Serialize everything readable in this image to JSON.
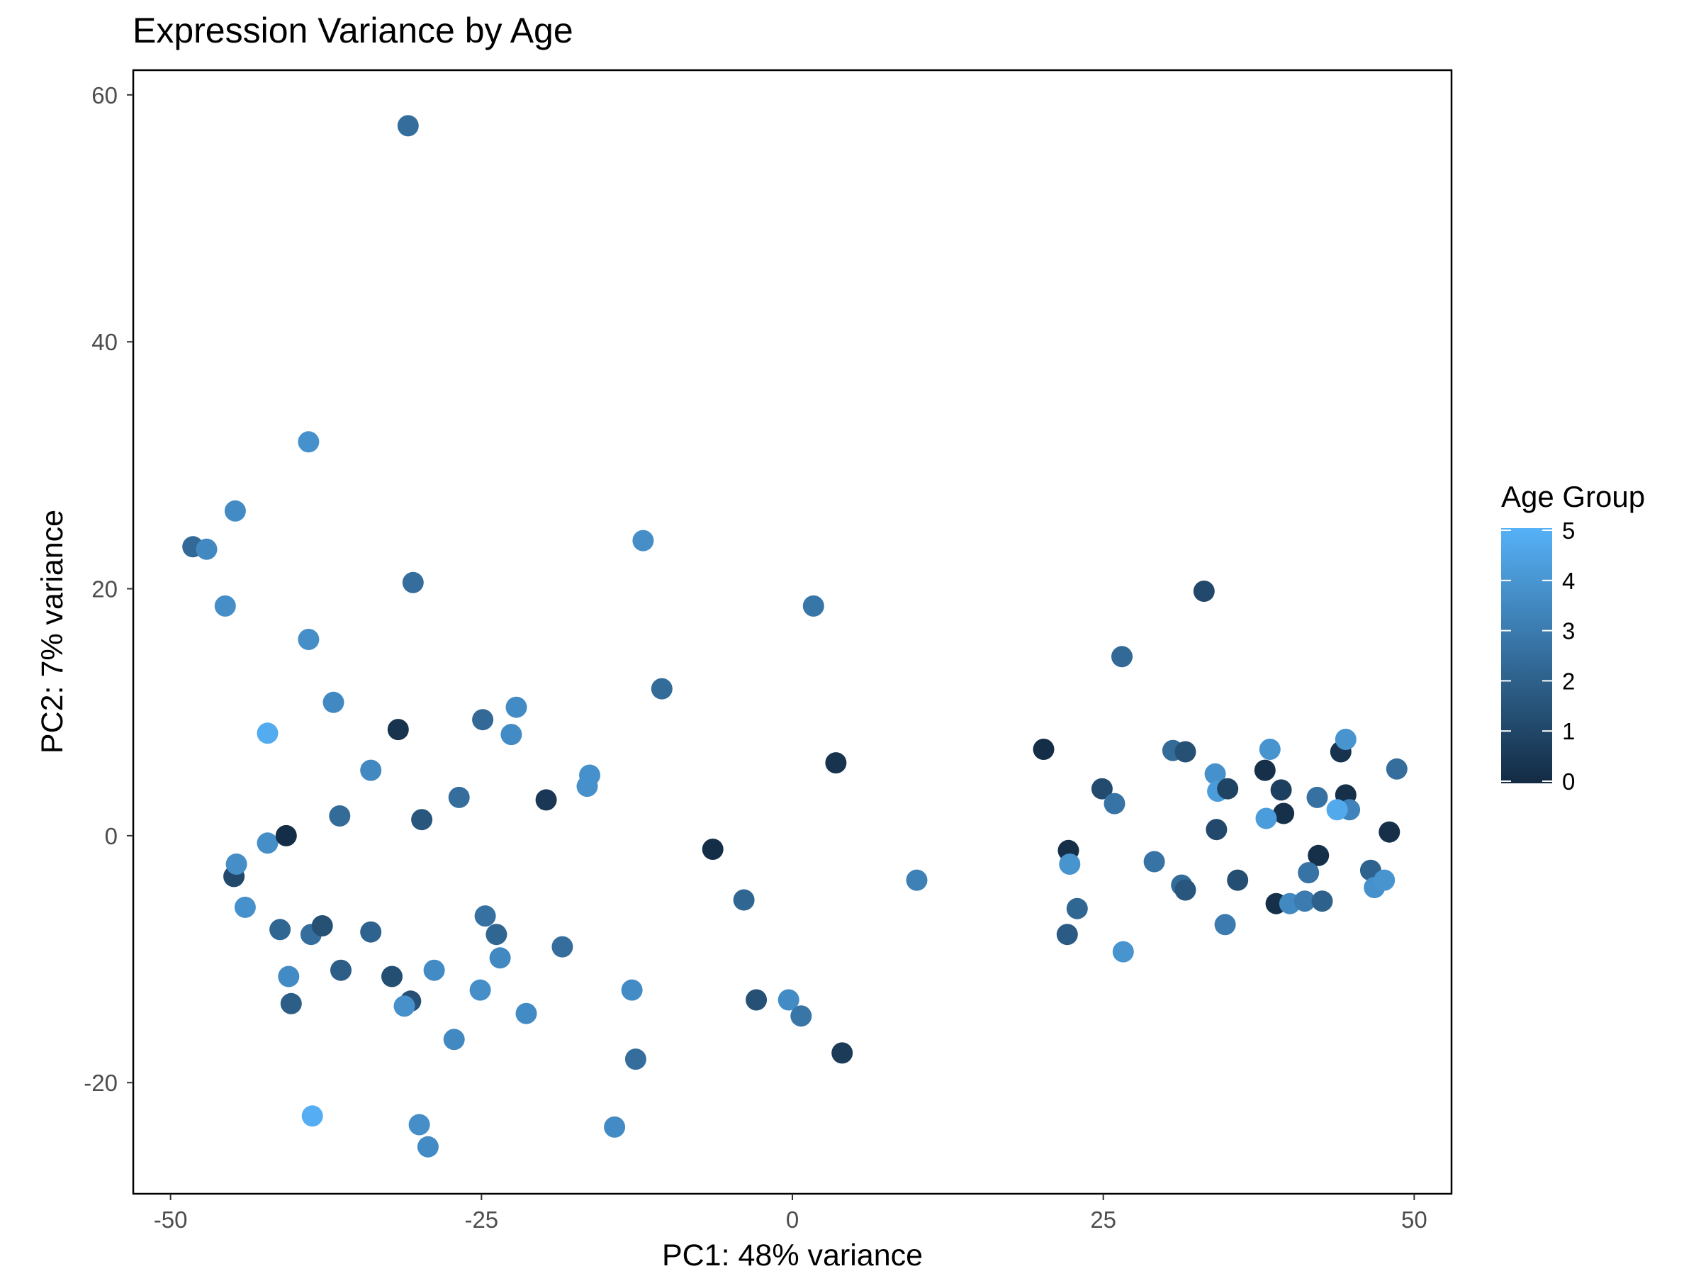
{
  "chart_data": {
    "type": "scatter",
    "title": "Expression Variance by Age",
    "xlabel": "PC1: 48% variance",
    "ylabel": "PC2: 7% variance",
    "xlim": [
      -53,
      53
    ],
    "ylim": [
      -29,
      62
    ],
    "x_ticks": [
      -50,
      -25,
      0,
      25,
      50
    ],
    "x_tick_labels": [
      "-50",
      "-25",
      "0",
      "25",
      "50"
    ],
    "y_ticks": [
      -20,
      0,
      20,
      40,
      60
    ],
    "y_tick_labels": [
      "-20",
      "0",
      "20",
      "40",
      "60"
    ],
    "grid": false,
    "legend": {
      "title": "Age Group",
      "position": "right",
      "min": 0,
      "max": 5,
      "ticks": [
        "0",
        "1",
        "2",
        "3",
        "4",
        "5"
      ],
      "color_low": "#132b43",
      "color_high": "#56b1f7"
    },
    "points": [
      {
        "x": -30.9,
        "y": 57.5,
        "age": 2.5
      },
      {
        "x": -38.9,
        "y": 31.9,
        "age": 3.8
      },
      {
        "x": -44.8,
        "y": 26.3,
        "age": 3.6
      },
      {
        "x": -48.2,
        "y": 23.4,
        "age": 2.3
      },
      {
        "x": -47.1,
        "y": 23.2,
        "age": 3.5
      },
      {
        "x": -45.6,
        "y": 18.6,
        "age": 3.7
      },
      {
        "x": -30.5,
        "y": 20.5,
        "age": 2.5
      },
      {
        "x": -38.9,
        "y": 15.9,
        "age": 3.7
      },
      {
        "x": -36.9,
        "y": 10.8,
        "age": 3.5
      },
      {
        "x": -42.2,
        "y": 8.3,
        "age": 4.8
      },
      {
        "x": -31.7,
        "y": 8.6,
        "age": 0.3
      },
      {
        "x": -24.9,
        "y": 9.4,
        "age": 2.3
      },
      {
        "x": -22.2,
        "y": 10.4,
        "age": 3.6
      },
      {
        "x": -22.6,
        "y": 8.2,
        "age": 3.6
      },
      {
        "x": -33.9,
        "y": 5.3,
        "age": 3.5
      },
      {
        "x": -36.4,
        "y": 1.6,
        "age": 2.4
      },
      {
        "x": -29.8,
        "y": 1.3,
        "age": 1.6
      },
      {
        "x": -26.8,
        "y": 3.1,
        "age": 2.5
      },
      {
        "x": -19.8,
        "y": 2.9,
        "age": 0.5
      },
      {
        "x": -16.3,
        "y": 4.9,
        "age": 3.8
      },
      {
        "x": -16.5,
        "y": 4.0,
        "age": 3.8
      },
      {
        "x": -12.0,
        "y": 23.9,
        "age": 3.7
      },
      {
        "x": -10.5,
        "y": 11.9,
        "age": 2.4
      },
      {
        "x": 1.7,
        "y": 18.6,
        "age": 2.8
      },
      {
        "x": 3.5,
        "y": 5.9,
        "age": 0.3
      },
      {
        "x": -42.2,
        "y": -0.6,
        "age": 3.7
      },
      {
        "x": -40.7,
        "y": 0.0,
        "age": 0.1
      },
      {
        "x": -44.9,
        "y": -3.3,
        "age": 1.1
      },
      {
        "x": -44.7,
        "y": -2.3,
        "age": 3.7
      },
      {
        "x": -44.0,
        "y": -5.8,
        "age": 3.8
      },
      {
        "x": -41.2,
        "y": -7.6,
        "age": 2.2
      },
      {
        "x": -38.7,
        "y": -8.0,
        "age": 2.5
      },
      {
        "x": -37.8,
        "y": -7.3,
        "age": 1.4
      },
      {
        "x": -33.9,
        "y": -7.8,
        "age": 2.1
      },
      {
        "x": -40.5,
        "y": -11.4,
        "age": 3.6
      },
      {
        "x": -40.3,
        "y": -13.6,
        "age": 1.9
      },
      {
        "x": -36.3,
        "y": -10.9,
        "age": 1.9
      },
      {
        "x": -32.2,
        "y": -11.4,
        "age": 1.3
      },
      {
        "x": -30.7,
        "y": -13.4,
        "age": 1.4
      },
      {
        "x": -31.2,
        "y": -13.8,
        "age": 3.8
      },
      {
        "x": -28.8,
        "y": -10.9,
        "age": 3.6
      },
      {
        "x": -24.7,
        "y": -6.5,
        "age": 2.6
      },
      {
        "x": -23.8,
        "y": -8.0,
        "age": 2.2
      },
      {
        "x": -23.5,
        "y": -9.9,
        "age": 3.5
      },
      {
        "x": -25.1,
        "y": -12.5,
        "age": 3.7
      },
      {
        "x": -21.4,
        "y": -14.4,
        "age": 3.6
      },
      {
        "x": -18.5,
        "y": -9.0,
        "age": 2.5
      },
      {
        "x": -27.2,
        "y": -16.5,
        "age": 3.5
      },
      {
        "x": -12.9,
        "y": -12.5,
        "age": 3.6
      },
      {
        "x": -12.6,
        "y": -18.1,
        "age": 2.5
      },
      {
        "x": -6.4,
        "y": -1.1,
        "age": 0.1
      },
      {
        "x": -3.9,
        "y": -5.2,
        "age": 2.2
      },
      {
        "x": -2.9,
        "y": -13.3,
        "age": 1.4
      },
      {
        "x": -0.3,
        "y": -13.3,
        "age": 3.6
      },
      {
        "x": 0.7,
        "y": -14.6,
        "age": 2.8
      },
      {
        "x": 4.0,
        "y": -17.6,
        "age": 0.6
      },
      {
        "x": 10.0,
        "y": -3.6,
        "age": 3.2
      },
      {
        "x": -38.6,
        "y": -22.7,
        "age": 4.9
      },
      {
        "x": -30.0,
        "y": -23.4,
        "age": 3.7
      },
      {
        "x": -29.3,
        "y": -25.2,
        "age": 3.6
      },
      {
        "x": -14.3,
        "y": -23.6,
        "age": 3.6
      },
      {
        "x": 20.2,
        "y": 7.0,
        "age": 0.1
      },
      {
        "x": 22.2,
        "y": -1.2,
        "age": 0.2
      },
      {
        "x": 22.3,
        "y": -2.3,
        "age": 3.9
      },
      {
        "x": 22.9,
        "y": -5.9,
        "age": 2.2
      },
      {
        "x": 22.1,
        "y": -8.0,
        "age": 1.8
      },
      {
        "x": 24.9,
        "y": 3.8,
        "age": 1.2
      },
      {
        "x": 25.9,
        "y": 2.6,
        "age": 2.7
      },
      {
        "x": 26.5,
        "y": 14.5,
        "age": 2.3
      },
      {
        "x": 26.6,
        "y": -9.4,
        "age": 3.9
      },
      {
        "x": 29.1,
        "y": -2.1,
        "age": 2.7
      },
      {
        "x": 30.6,
        "y": 6.9,
        "age": 2.4
      },
      {
        "x": 31.6,
        "y": 6.8,
        "age": 1.4
      },
      {
        "x": 31.3,
        "y": -4.0,
        "age": 2.4
      },
      {
        "x": 31.6,
        "y": -4.4,
        "age": 1.6
      },
      {
        "x": 33.1,
        "y": 19.8,
        "age": 1.1
      },
      {
        "x": 34.0,
        "y": 5.0,
        "age": 3.8
      },
      {
        "x": 34.2,
        "y": 3.6,
        "age": 4.2
      },
      {
        "x": 35.0,
        "y": 3.8,
        "age": 0.9
      },
      {
        "x": 34.1,
        "y": 0.5,
        "age": 1.1
      },
      {
        "x": 34.8,
        "y": -7.2,
        "age": 3.0
      },
      {
        "x": 35.8,
        "y": -3.6,
        "age": 1.3
      },
      {
        "x": 38.0,
        "y": 5.3,
        "age": 0.2
      },
      {
        "x": 38.4,
        "y": 7.0,
        "age": 3.9
      },
      {
        "x": 39.3,
        "y": 3.7,
        "age": 0.8
      },
      {
        "x": 39.5,
        "y": 1.8,
        "age": 0.2
      },
      {
        "x": 38.1,
        "y": 1.4,
        "age": 4.2
      },
      {
        "x": 38.9,
        "y": -5.5,
        "age": 0.2
      },
      {
        "x": 40.0,
        "y": -5.5,
        "age": 3.5
      },
      {
        "x": 41.2,
        "y": -5.3,
        "age": 3.0
      },
      {
        "x": 42.2,
        "y": 3.1,
        "age": 2.6
      },
      {
        "x": 42.3,
        "y": -1.6,
        "age": 0.2
      },
      {
        "x": 41.5,
        "y": -3.0,
        "age": 2.7
      },
      {
        "x": 42.6,
        "y": -5.3,
        "age": 2.0
      },
      {
        "x": 44.1,
        "y": 6.8,
        "age": 0.3
      },
      {
        "x": 44.5,
        "y": 3.3,
        "age": 0.2
      },
      {
        "x": 44.5,
        "y": 7.8,
        "age": 3.9
      },
      {
        "x": 44.8,
        "y": 2.1,
        "age": 3.3
      },
      {
        "x": 43.8,
        "y": 2.1,
        "age": 4.7
      },
      {
        "x": 46.5,
        "y": -2.8,
        "age": 2.1
      },
      {
        "x": 46.8,
        "y": -4.2,
        "age": 3.8
      },
      {
        "x": 47.6,
        "y": -3.6,
        "age": 3.9
      },
      {
        "x": 48.0,
        "y": 0.3,
        "age": 0.2
      },
      {
        "x": 48.6,
        "y": 5.4,
        "age": 2.5
      }
    ]
  }
}
